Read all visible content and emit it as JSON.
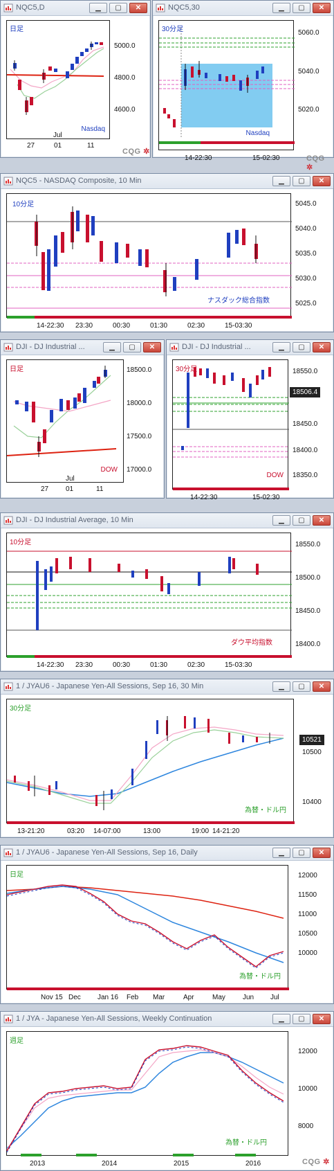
{
  "windows": [
    {
      "title": "NQC5,D",
      "period_label": "日足",
      "legend": "Nasdaq",
      "y_ticks": [
        "5000.0",
        "4800.0",
        "4600.0"
      ],
      "x_ticks": [
        "27",
        "01",
        "11"
      ],
      "x_month": "Jul"
    },
    {
      "title": "NQC5,30",
      "period_label": "30分足",
      "legend": "Nasdaq",
      "y_ticks": [
        "5060.0",
        "5040.0",
        "5020.0"
      ],
      "x_ticks": [
        "14-22:30",
        "15-02:30"
      ]
    },
    {
      "title": "NQC5 - NASDAQ Composite, 10 Min",
      "period_label": "10分足",
      "legend": "ナスダック総合指数",
      "y_ticks": [
        "5045.0",
        "5040.0",
        "5035.0",
        "5030.0",
        "5025.0"
      ],
      "x_ticks": [
        "14-22:30",
        "23:30",
        "00:30",
        "01:30",
        "02:30",
        "15-03:30"
      ]
    },
    {
      "title": "DJI - DJ Industrial ...",
      "period_label": "日足",
      "legend": "DOW",
      "y_ticks": [
        "18500.0",
        "18000.0",
        "17500.0",
        "17000.0"
      ],
      "x_ticks": [
        "27",
        "01",
        "11"
      ],
      "x_month": "Jul"
    },
    {
      "title": "DJI - DJ Industrial ...",
      "period_label": "30分足",
      "legend": "DOW",
      "y_ticks": [
        "18550.0",
        "18450.0",
        "18400.0",
        "18350.0"
      ],
      "x_ticks": [
        "14-22:30",
        "15-02:30"
      ],
      "price_tag": "18506.4"
    },
    {
      "title": "DJI - DJ Industrial Average, 10 Min",
      "period_label": "10分足",
      "legend": "ダウ平均指数",
      "y_ticks": [
        "18550.0",
        "18500.0",
        "18450.0",
        "18400.0"
      ],
      "x_ticks": [
        "14-22:30",
        "23:30",
        "00:30",
        "01:30",
        "02:30",
        "15-03:30"
      ]
    },
    {
      "title": "1 / JYAU6 - Japanese Yen-All Sessions, Sep 16, 30 Min",
      "period_label": "30分足",
      "legend": "為替・ドル円",
      "y_ticks": [
        "10500",
        "10400"
      ],
      "x_ticks": [
        "13-21:20",
        "03:20",
        "14-07:00",
        "13:00",
        "19:00",
        "14-21:20"
      ],
      "price_tag": "10521"
    },
    {
      "title": "1 / JYAU6 - Japanese Yen-All Sessions, Sep 16, Daily",
      "period_label": "日足",
      "legend": "為替・ドル円",
      "y_ticks": [
        "12000",
        "11500",
        "11000",
        "10500",
        "10000"
      ],
      "x_ticks": [
        "Nov 15",
        "Dec",
        "Jan 16",
        "Feb",
        "Mar",
        "Apr",
        "May",
        "Jun",
        "Jul"
      ]
    },
    {
      "title": "1 / JYA - Japanese Yen-All Sessions, Weekly Continuation",
      "period_label": "週足",
      "legend": "為替・ドル円",
      "y_ticks": [
        "12000",
        "10000",
        "8000"
      ],
      "x_ticks": [
        "2013",
        "2014",
        "2015",
        "2016"
      ]
    }
  ],
  "brand": {
    "cqg": "CQG"
  },
  "buttons": {
    "minimize": "▁",
    "restore": "▢",
    "close": "✕"
  },
  "colors": {
    "up": "#1f3fbf",
    "down": "#c8102e",
    "highlight": "#6cc3ee"
  }
}
